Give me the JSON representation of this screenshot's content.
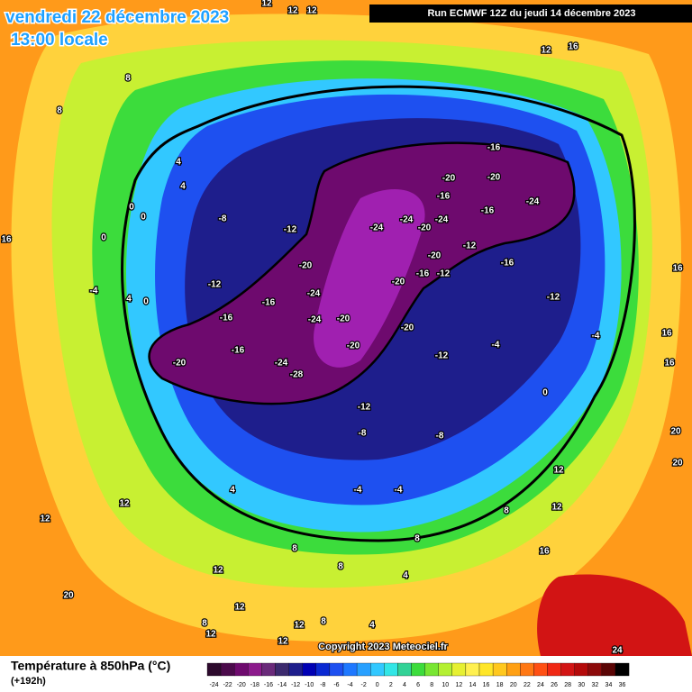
{
  "header": {
    "date": "vendredi 22 décembre 2023",
    "time": "13:00 locale",
    "run": "Run ECMWF 12Z du jeudi 14 décembre 2023"
  },
  "footer": {
    "title": "Température à 850hPa (°C)",
    "lead": "(+192h)",
    "copyright": "Copyright 2023 Meteociel.fr"
  },
  "colorbar": {
    "ticks": [
      -24,
      -22,
      -20,
      -18,
      -16,
      -14,
      -12,
      -10,
      -8,
      -6,
      -4,
      -2,
      0,
      2,
      4,
      6,
      8,
      10,
      12,
      14,
      16,
      18,
      20,
      22,
      24,
      26,
      28,
      30,
      32,
      34,
      36
    ],
    "colors": [
      "#2d0a2d",
      "#4b0a4b",
      "#6e0a6e",
      "#8c1a8c",
      "#6a2a7a",
      "#3c2a6e",
      "#1e1e8c",
      "#0000b4",
      "#0a28d2",
      "#1e50f0",
      "#1e78ff",
      "#28a0ff",
      "#32c8ff",
      "#32e6e6",
      "#32d296",
      "#3cdc3c",
      "#78e632",
      "#b4f032",
      "#e6f032",
      "#fff050",
      "#ffe628",
      "#ffc81e",
      "#ffa014",
      "#ff7814",
      "#ff5014",
      "#f02814",
      "#d21414",
      "#b40a0a",
      "#8c0a0a",
      "#5a0505",
      "#000000"
    ]
  },
  "contour_labels": [
    -16,
    -20,
    -20,
    -24,
    -16,
    -16,
    -24,
    -24,
    -24,
    -20,
    -12,
    -20,
    -16,
    -16,
    -12,
    -20,
    -12,
    -8,
    -12,
    -24,
    -20,
    -12,
    -16,
    -16,
    -24,
    -20,
    -20,
    -20,
    -16,
    -20,
    -24,
    -28,
    -12,
    -4,
    -4,
    -12,
    -8,
    -8,
    -4,
    -4,
    0,
    16,
    16,
    16,
    20,
    20,
    12,
    12,
    8,
    16,
    8,
    8,
    8,
    4,
    12,
    12,
    12,
    20,
    12,
    8,
    12,
    12,
    8,
    12,
    4,
    4,
    12,
    16,
    16,
    8,
    8,
    4,
    0,
    0,
    -4,
    0,
    12,
    12,
    12,
    24,
    4,
    4,
    0
  ]
}
